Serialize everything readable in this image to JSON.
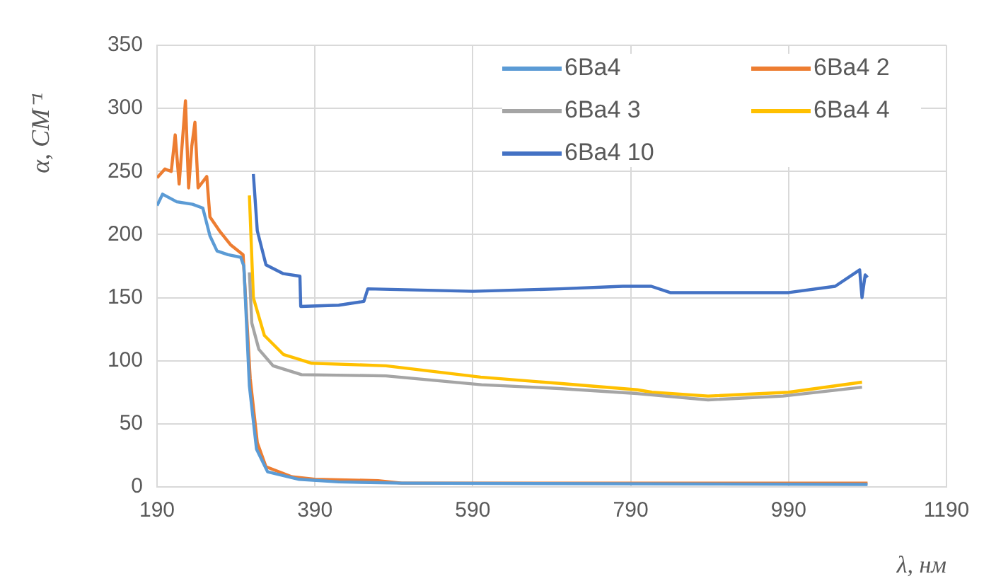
{
  "chart_data": {
    "type": "line",
    "xlabel": "λ, нм",
    "ylabel": "α, СМ⁻¹",
    "xlim": [
      190,
      1190
    ],
    "xticks": [
      190,
      390,
      590,
      790,
      990,
      1190
    ],
    "ylim": [
      0,
      350
    ],
    "yticks": [
      0,
      50,
      100,
      150,
      200,
      250,
      300,
      350
    ],
    "grid": true,
    "legend": "top right",
    "marker": "none",
    "line_style": "solid",
    "series": [
      {
        "name": "6Ba4",
        "color": "#5b9bd5",
        "x": [
          190,
          197,
          215,
          235,
          248,
          257,
          266,
          280,
          296,
          300,
          307,
          316,
          330,
          370,
          420,
          500,
          1090
        ],
        "values": [
          223,
          232,
          226,
          224,
          221,
          199,
          187,
          184,
          182,
          175,
          80,
          30,
          12,
          6,
          4,
          3,
          2
        ]
      },
      {
        "name": "6Ba4 2",
        "color": "#ed7d31",
        "x": [
          190,
          200,
          208,
          213,
          218,
          226,
          230,
          234,
          238,
          242,
          253,
          257,
          269,
          283,
          299,
          308,
          317,
          328,
          361,
          390,
          470,
          500,
          1090
        ],
        "values": [
          245,
          252,
          250,
          279,
          240,
          306,
          237,
          270,
          289,
          237,
          246,
          214,
          203,
          192,
          184,
          86,
          35,
          16,
          8,
          6,
          5,
          3,
          3
        ]
      },
      {
        "name": "6Ba4 3",
        "color": "#a5a5a5",
        "x": [
          307,
          310,
          319,
          337,
          373,
          480,
          601,
          700,
          798,
          888,
          983,
          1083
        ],
        "values": [
          170,
          130,
          109,
          96,
          89,
          88,
          81,
          78,
          74,
          69,
          72,
          79
        ]
      },
      {
        "name": "6Ba4 4",
        "color": "#ffc000",
        "x": [
          307,
          312,
          326,
          350,
          386,
          480,
          600,
          700,
          798,
          817,
          888,
          990,
          1083
        ],
        "values": [
          231,
          150,
          120,
          105,
          98,
          96,
          87,
          82,
          77,
          75,
          72,
          75,
          83
        ]
      },
      {
        "name": "6Ba4 10",
        "color": "#4472c4",
        "x": [
          312,
          317,
          328,
          350,
          371,
          372,
          420,
          452,
          457,
          590,
          700,
          780,
          816,
          840,
          990,
          1049,
          1080,
          1083,
          1087,
          1090
        ],
        "values": [
          248,
          203,
          176,
          169,
          167,
          143,
          144,
          147,
          157,
          155,
          157,
          159,
          159,
          154,
          154,
          159,
          172,
          150,
          168,
          166
        ]
      }
    ]
  }
}
